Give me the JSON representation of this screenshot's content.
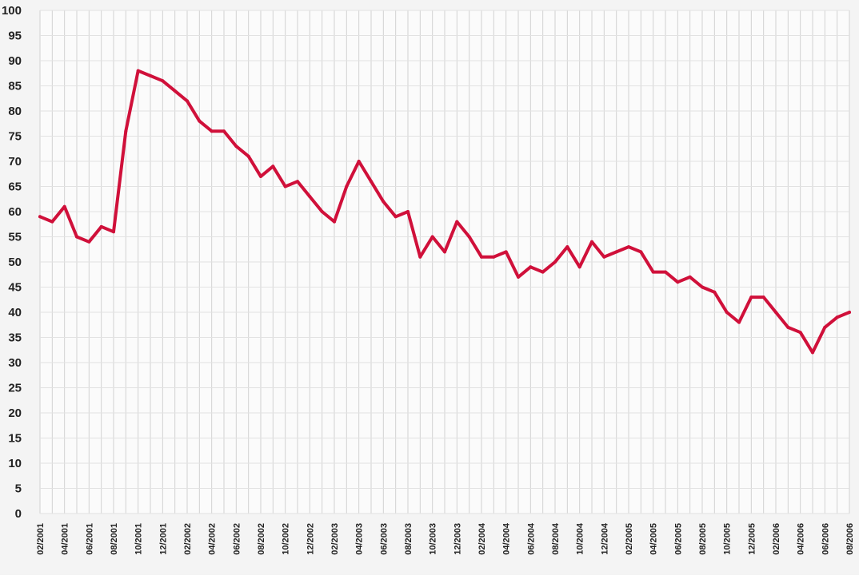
{
  "chart_data": {
    "type": "line",
    "title": "",
    "xlabel": "",
    "ylabel": "",
    "ylim": [
      0,
      100
    ],
    "y_ticks": [
      "0",
      "5",
      "10",
      "15",
      "20",
      "25",
      "30",
      "35",
      "40",
      "45",
      "50",
      "55",
      "60",
      "65",
      "70",
      "75",
      "80",
      "85",
      "90",
      "95",
      "100"
    ],
    "x_tick_labels": [
      "02/2001",
      "04/2001",
      "06/2001",
      "08/2001",
      "10/2001",
      "12/2001",
      "02/2002",
      "04/2002",
      "06/2002",
      "08/2002",
      "10/2002",
      "12/2002",
      "02/2003",
      "04/2003",
      "06/2003",
      "08/2003",
      "10/2003",
      "12/2003",
      "02/2004",
      "04/2004",
      "06/2004",
      "08/2004",
      "10/2004",
      "12/2004",
      "02/2005",
      "04/2005",
      "06/2005",
      "08/2005",
      "10/2005",
      "12/2005",
      "02/2006",
      "04/2006",
      "06/2006",
      "08/2006"
    ],
    "grid": true,
    "line_color": "#d0103a",
    "series": [
      {
        "x": [
          "02/2001",
          "03/2001",
          "04/2001",
          "05/2001",
          "06/2001",
          "07/2001",
          "08/2001",
          "09/2001",
          "10/2001",
          "11/2001",
          "12/2001",
          "01/2002",
          "02/2002",
          "03/2002",
          "04/2002",
          "05/2002",
          "06/2002",
          "07/2002",
          "08/2002",
          "09/2002",
          "10/2002",
          "11/2002",
          "12/2002",
          "01/2003",
          "02/2003",
          "03/2003",
          "04/2003",
          "05/2003",
          "06/2003",
          "07/2003",
          "08/2003",
          "09/2003",
          "10/2003",
          "11/2003",
          "12/2003",
          "01/2004",
          "02/2004",
          "03/2004",
          "04/2004",
          "05/2004",
          "06/2004",
          "07/2004",
          "08/2004",
          "09/2004",
          "10/2004",
          "11/2004",
          "12/2004",
          "01/2005",
          "02/2005",
          "03/2005",
          "04/2005",
          "05/2005",
          "06/2005",
          "07/2005",
          "08/2005",
          "09/2005",
          "10/2005",
          "11/2005",
          "12/2005",
          "01/2006",
          "02/2006",
          "03/2006",
          "04/2006",
          "05/2006",
          "06/2006",
          "07/2006",
          "08/2006"
        ],
        "values": [
          59,
          58,
          61,
          55,
          54,
          57,
          56,
          76,
          88,
          87,
          86,
          84,
          82,
          78,
          76,
          76,
          73,
          71,
          67,
          69,
          65,
          66,
          63,
          60,
          58,
          65,
          70,
          66,
          62,
          59,
          60,
          51,
          55,
          52,
          58,
          55,
          51,
          51,
          52,
          47,
          49,
          48,
          50,
          53,
          49,
          54,
          51,
          52,
          53,
          52,
          48,
          48,
          46,
          47,
          45,
          44,
          40,
          38,
          43,
          43,
          40,
          37,
          36,
          32,
          37,
          39,
          40
        ]
      }
    ]
  }
}
